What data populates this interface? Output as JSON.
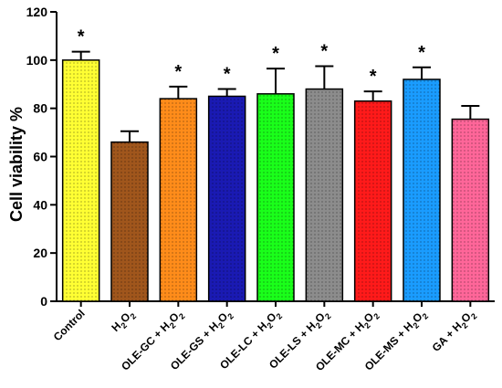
{
  "chart_data": {
    "type": "bar",
    "ylabel": "Cell viability %",
    "ylim": [
      0,
      120
    ],
    "yticks": [
      "0",
      "20",
      "40",
      "60",
      "80",
      "100",
      "120"
    ],
    "categories": [
      {
        "label": "Control"
      },
      {
        "label": "H",
        "sub": "2",
        "label2": "O",
        "sub2": "2"
      },
      {
        "prefix": "OLE-GC + H",
        "sub": "2",
        "mid": "O",
        "sub2": "2"
      },
      {
        "prefix": "OLE-GS + H",
        "sub": "2",
        "mid": "O",
        "sub2": "2"
      },
      {
        "prefix": "OLE-LC + H",
        "sub": "2",
        "mid": "O",
        "sub2": "2"
      },
      {
        "prefix": "OLE-LS + H",
        "sub": "2",
        "mid": "O",
        "sub2": "2"
      },
      {
        "prefix": "OLE-MC + H",
        "sub": "2",
        "mid": "O",
        "sub2": "2"
      },
      {
        "prefix": "OLE-MS + H",
        "sub": "2",
        "mid": "O",
        "sub2": "2"
      },
      {
        "prefix": "GA + H",
        "sub": "2",
        "mid": "O",
        "sub2": "2"
      }
    ],
    "values": [
      100,
      66,
      84,
      85,
      86,
      88,
      83,
      92,
      75.5
    ],
    "errors": [
      3.5,
      4.5,
      5,
      3,
      10.5,
      9.5,
      4,
      5,
      5.5
    ],
    "significant": [
      true,
      false,
      true,
      true,
      true,
      true,
      true,
      true,
      false
    ],
    "significance_mark": "*",
    "colors": [
      "#ffff33",
      "#a0561c",
      "#ff8c1a",
      "#1a1ab3",
      "#1aff1a",
      "#8c8c8c",
      "#ff1a1a",
      "#1a9cff",
      "#ff6699"
    ],
    "grid": false,
    "legend": "none"
  }
}
